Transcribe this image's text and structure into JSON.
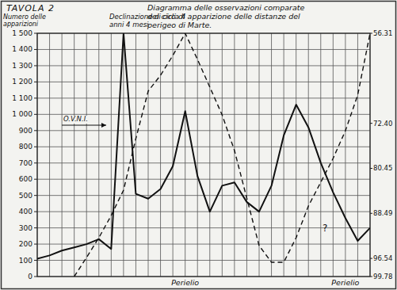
{
  "chart_data": {
    "type": "line",
    "plate": "TAVOLA 2",
    "title": "Diagramma delle osservazioni comparate dei cicli di apparizione delle distanze del perigeo di Marte.",
    "ylabel": "Numero delle apparizioni",
    "annotations": [
      "O.V.N.I.",
      "Declinazione di circa 4 anni 4 mesi",
      "?"
    ],
    "categories": [
      null,
      null,
      null,
      null,
      null,
      null,
      null,
      null,
      null,
      null,
      null,
      null,
      "Perielio",
      null,
      null,
      null,
      null,
      null,
      null,
      null,
      null,
      null,
      null,
      null,
      null,
      "Perielio",
      null,
      null
    ],
    "series": [
      {
        "color": "#111111",
        "line_style": "solid",
        "values": [
          110,
          130,
          160,
          180,
          200,
          230,
          170,
          1500,
          510,
          480,
          540,
          680,
          1020,
          620,
          400,
          560,
          580,
          460,
          400,
          560,
          870,
          1060,
          920,
          700,
          520,
          360,
          220,
          300
        ]
      },
      {
        "color": "#111111",
        "line_style": "dashed",
        "axis": "y2",
        "values": [
          null,
          null,
          null,
          99.78,
          96.38,
          92.84,
          88.88,
          84.35,
          75.14,
          66.65,
          63.81,
          60.27,
          56.31,
          60.98,
          65.94,
          70.89,
          77.27,
          85.76,
          94.26,
          97.23,
          97.23,
          92.84,
          87.18,
          82.93,
          78.68,
          73.73,
          67.35,
          56.31
        ]
      }
    ],
    "ylim": [
      0,
      1500
    ],
    "yticks": [
      0,
      100,
      200,
      300,
      400,
      500,
      600,
      700,
      800,
      900,
      {
        "value": 1000,
        "label": "1 000"
      },
      {
        "value": 1100,
        "label": "1 100"
      },
      {
        "value": 1200,
        "label": "1 200"
      },
      {
        "value": 1300,
        "label": "1 300"
      },
      {
        "value": 1400,
        "label": "1 400"
      },
      {
        "value": 1500,
        "label": "1 500"
      }
    ],
    "y2lim": [
      99.78,
      56.31
    ],
    "y2ticks": [
      56.31,
      {
        "value": 72.4,
        "label": "72.40"
      },
      80.45,
      88.49,
      96.54,
      99.78
    ],
    "grid": true
  }
}
